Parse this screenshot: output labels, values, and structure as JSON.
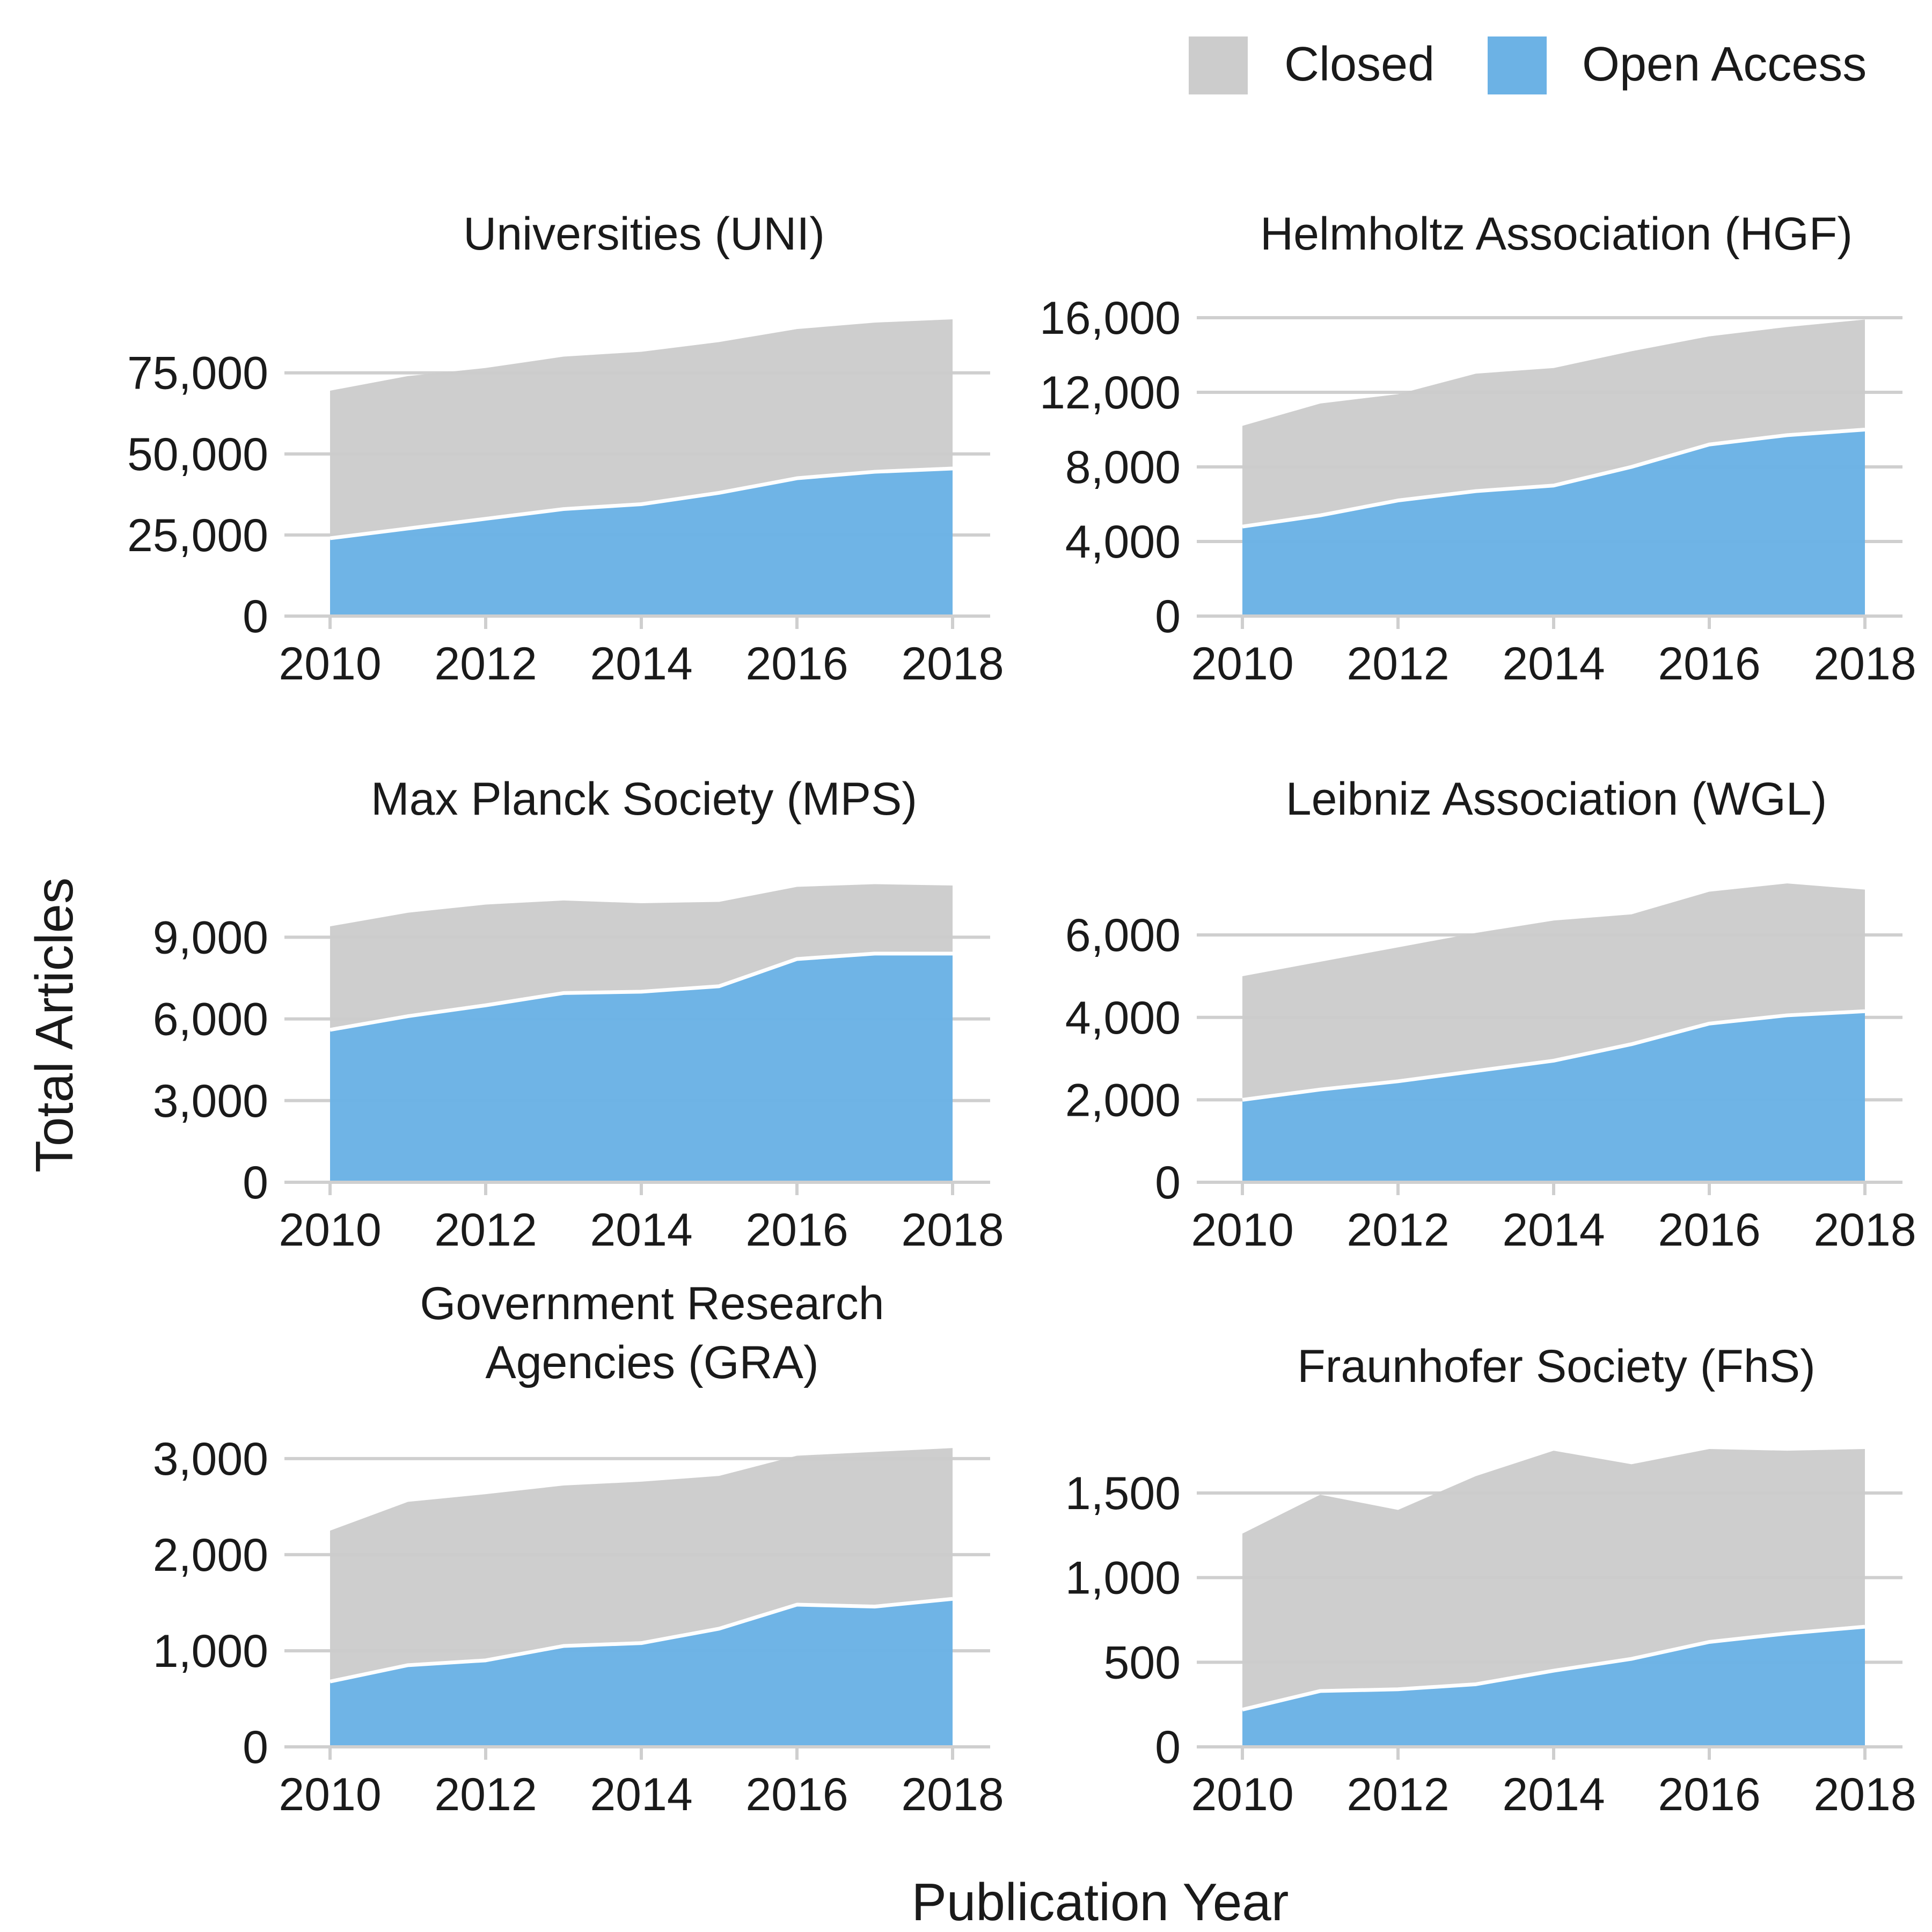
{
  "figure": {
    "xlabel": "Publication Year",
    "ylabel": "Total Articles"
  },
  "legend": {
    "position": "top-right",
    "items": [
      {
        "label": "Closed",
        "color": "#cccccc"
      },
      {
        "label": "Open Access",
        "color": "#6cb2e5"
      }
    ]
  },
  "colors": {
    "closed": "#cccccc",
    "open_access": "#6cb2e5",
    "grid": "#cfcfcf",
    "boundary": "#ffffff"
  },
  "chart_data": [
    {
      "type": "area",
      "stacked": true,
      "title_lines": [
        "Universities (UNI)"
      ],
      "x": [
        2010,
        2011,
        2012,
        2013,
        2014,
        2015,
        2016,
        2017,
        2018
      ],
      "xticks": [
        2010,
        2012,
        2014,
        2016,
        2018
      ],
      "ylim": [
        0,
        92000
      ],
      "yticks": [
        0,
        25000,
        50000,
        75000
      ],
      "ytick_labels": [
        "0",
        "25,000",
        "50,000",
        "75,000"
      ],
      "series": [
        {
          "name": "Open Access",
          "values": [
            24000,
            27000,
            30000,
            33000,
            34500,
            38000,
            42500,
            44500,
            45500
          ]
        },
        {
          "name": "Closed",
          "values": [
            45500,
            47000,
            46500,
            47000,
            47000,
            46500,
            46000,
            46000,
            46000
          ]
        }
      ]
    },
    {
      "type": "area",
      "stacked": true,
      "title_lines": [
        "Helmholtz Association (HGF)"
      ],
      "x": [
        2010,
        2011,
        2012,
        2013,
        2014,
        2015,
        2016,
        2017,
        2018
      ],
      "xticks": [
        2010,
        2012,
        2014,
        2016,
        2018
      ],
      "ylim": [
        0,
        16200
      ],
      "yticks": [
        0,
        4000,
        8000,
        12000,
        16000
      ],
      "ytick_labels": [
        "0",
        "4,000",
        "8,000",
        "12,000",
        "16,000"
      ],
      "series": [
        {
          "name": "Open Access",
          "values": [
            4800,
            5400,
            6200,
            6700,
            7000,
            8000,
            9200,
            9700,
            10000
          ]
        },
        {
          "name": "Closed",
          "values": [
            5400,
            6000,
            5700,
            6300,
            6300,
            6200,
            5800,
            5800,
            5900
          ]
        }
      ]
    },
    {
      "type": "area",
      "stacked": true,
      "title_lines": [
        "Max Planck Society (MPS)"
      ],
      "x": [
        2010,
        2011,
        2012,
        2013,
        2014,
        2015,
        2016,
        2017,
        2018
      ],
      "xticks": [
        2010,
        2012,
        2014,
        2016,
        2018
      ],
      "ylim": [
        0,
        10900
      ],
      "yticks": [
        0,
        3000,
        6000,
        9000
      ],
      "ytick_labels": [
        "0",
        "3,000",
        "6,000",
        "9,000"
      ],
      "series": [
        {
          "name": "Open Access",
          "values": [
            5600,
            6100,
            6500,
            6950,
            7000,
            7200,
            8200,
            8400,
            8400
          ]
        },
        {
          "name": "Closed",
          "values": [
            3800,
            3800,
            3700,
            3400,
            3250,
            3100,
            2650,
            2550,
            2500
          ]
        }
      ]
    },
    {
      "type": "area",
      "stacked": true,
      "title_lines": [
        "Leibniz Association (WGL)"
      ],
      "x": [
        2010,
        2011,
        2012,
        2013,
        2014,
        2015,
        2016,
        2017,
        2018
      ],
      "xticks": [
        2010,
        2012,
        2014,
        2016,
        2018
      ],
      "ylim": [
        0,
        7200
      ],
      "yticks": [
        0,
        2000,
        4000,
        6000
      ],
      "ytick_labels": [
        "0",
        "2,000",
        "4,000",
        "6,000"
      ],
      "series": [
        {
          "name": "Open Access",
          "values": [
            2000,
            2250,
            2450,
            2700,
            2950,
            3350,
            3850,
            4050,
            4150
          ]
        },
        {
          "name": "Closed",
          "values": [
            3000,
            3100,
            3250,
            3350,
            3400,
            3150,
            3200,
            3200,
            2950
          ]
        }
      ]
    },
    {
      "type": "area",
      "stacked": true,
      "title_lines": [
        "Government Research",
        "Agencies (GRA)"
      ],
      "x": [
        2010,
        2011,
        2012,
        2013,
        2014,
        2015,
        2016,
        2017,
        2018
      ],
      "xticks": [
        2010,
        2012,
        2014,
        2016,
        2018
      ],
      "ylim": [
        0,
        3100
      ],
      "yticks": [
        0,
        1000,
        2000,
        3000
      ],
      "ytick_labels": [
        "0",
        "1,000",
        "2,000",
        "3,000"
      ],
      "series": [
        {
          "name": "Open Access",
          "values": [
            680,
            850,
            900,
            1050,
            1080,
            1230,
            1480,
            1460,
            1540
          ]
        },
        {
          "name": "Closed",
          "values": [
            1570,
            1700,
            1730,
            1670,
            1680,
            1590,
            1550,
            1610,
            1570
          ]
        }
      ]
    },
    {
      "type": "area",
      "stacked": true,
      "title_lines": [
        "Fraunhofer Society (FhS)"
      ],
      "x": [
        2010,
        2011,
        2012,
        2013,
        2014,
        2015,
        2016,
        2017,
        2018
      ],
      "xticks": [
        2010,
        2012,
        2014,
        2016,
        2018
      ],
      "ylim": [
        0,
        1760
      ],
      "yticks": [
        0,
        500,
        1000,
        1500
      ],
      "ytick_labels": [
        "0",
        "500",
        "1,000",
        "1,500"
      ],
      "series": [
        {
          "name": "Open Access",
          "values": [
            220,
            330,
            340,
            370,
            450,
            520,
            620,
            670,
            710
          ]
        },
        {
          "name": "Closed",
          "values": [
            1040,
            1160,
            1060,
            1230,
            1300,
            1150,
            1140,
            1080,
            1050
          ]
        }
      ]
    }
  ]
}
